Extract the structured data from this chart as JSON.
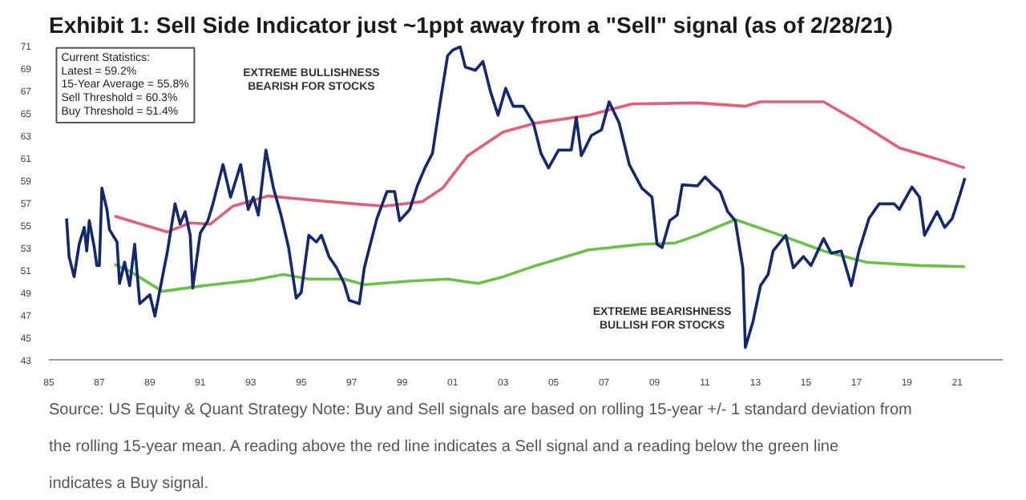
{
  "chart_data": {
    "type": "line",
    "title": "Exhibit 1: Sell Side Indicator just ~1ppt away from a \"Sell\" signal (as of 2/28/21)",
    "xlim": [
      1985,
      2022.8
    ],
    "ylim": [
      43,
      71
    ],
    "xticks": [
      {
        "value": 1985,
        "label": "85"
      },
      {
        "value": 1987,
        "label": "87"
      },
      {
        "value": 1989,
        "label": "89"
      },
      {
        "value": 1991,
        "label": "91"
      },
      {
        "value": 1993,
        "label": "93"
      },
      {
        "value": 1995,
        "label": "95"
      },
      {
        "value": 1997,
        "label": "97"
      },
      {
        "value": 1999,
        "label": "99"
      },
      {
        "value": 2001,
        "label": "01"
      },
      {
        "value": 2003,
        "label": "03"
      },
      {
        "value": 2005,
        "label": "05"
      },
      {
        "value": 2007,
        "label": "07"
      },
      {
        "value": 2009,
        "label": "09"
      },
      {
        "value": 2011,
        "label": "11"
      },
      {
        "value": 2013,
        "label": "13"
      },
      {
        "value": 2015,
        "label": "15"
      },
      {
        "value": 2017,
        "label": "17"
      },
      {
        "value": 2019,
        "label": "19"
      },
      {
        "value": 2021,
        "label": "21"
      }
    ],
    "yticks": [
      43,
      45,
      47,
      49,
      51,
      53,
      55,
      57,
      59,
      61,
      63,
      65,
      67,
      69,
      71
    ],
    "grid": false,
    "series": [
      {
        "color": "#e0607a",
        "x": [
          1987.6,
          1989.7,
          1990.6,
          1991.4,
          1992.3,
          1993.7,
          1995.1,
          1997.1,
          1998.3,
          1999.8,
          2000.6,
          2001.6,
          2003.0,
          2004.3,
          2006.4,
          2008.1,
          2010.7,
          2012.6,
          2013.2,
          2015.7,
          2017.0,
          2018.7,
          2020.2,
          2021.3
        ],
        "values": [
          55.8,
          54.4,
          55.2,
          55.1,
          56.7,
          57.6,
          57.3,
          56.9,
          56.7,
          57.1,
          58.3,
          61.2,
          63.3,
          64.1,
          64.8,
          65.8,
          65.9,
          65.6,
          66.0,
          66.0,
          64.3,
          61.9,
          60.9,
          60.1
        ]
      },
      {
        "color": "#6cc04a",
        "x": [
          1987.6,
          1988.2,
          1989.5,
          1991.1,
          1993.1,
          1994.3,
          1995.3,
          1996.7,
          1997.5,
          1999.2,
          2000.8,
          2002.0,
          2003.0,
          2004.3,
          2006.4,
          2008.5,
          2009.8,
          2010.7,
          2012.2,
          2014.0,
          2015.7,
          2017.4,
          2019.5,
          2021.3
        ],
        "values": [
          51.5,
          50.9,
          49.1,
          49.6,
          50.1,
          50.6,
          50.2,
          50.2,
          49.7,
          50.0,
          50.2,
          49.8,
          50.4,
          51.4,
          52.8,
          53.3,
          53.4,
          54.1,
          55.5,
          54.1,
          52.7,
          51.7,
          51.4,
          51.3
        ]
      },
      {
        "color": "#14286e",
        "x": [
          1985.7,
          1985.8,
          1986.0,
          1986.2,
          1986.4,
          1986.5,
          1986.6,
          1986.8,
          1986.9,
          1987.0,
          1987.1,
          1987.3,
          1987.4,
          1987.7,
          1987.8,
          1988.0,
          1988.2,
          1988.4,
          1988.6,
          1989.0,
          1989.2,
          1989.7,
          1990.0,
          1990.2,
          1990.4,
          1990.6,
          1990.7,
          1991.0,
          1991.3,
          1991.5,
          1991.9,
          1992.2,
          1992.6,
          1992.9,
          1993.1,
          1993.3,
          1993.6,
          1993.9,
          1994.2,
          1994.5,
          1994.8,
          1995.0,
          1995.3,
          1995.6,
          1995.8,
          1996.1,
          1996.4,
          1996.7,
          1996.9,
          1997.3,
          1997.5,
          1998.0,
          1998.4,
          1998.7,
          1998.9,
          1999.3,
          1999.6,
          1999.9,
          2000.2,
          2000.5,
          2000.8,
          2001.0,
          2001.3,
          2001.5,
          2001.9,
          2002.2,
          2002.5,
          2002.8,
          2003.1,
          2003.4,
          2003.8,
          2004.2,
          2004.5,
          2004.8,
          2005.2,
          2005.7,
          2005.9,
          2006.1,
          2006.5,
          2006.9,
          2007.2,
          2007.6,
          2008.0,
          2008.5,
          2008.9,
          2009.1,
          2009.3,
          2009.6,
          2009.9,
          2010.1,
          2010.7,
          2011.0,
          2011.3,
          2011.6,
          2011.9,
          2012.2,
          2012.5,
          2012.6,
          2012.9,
          2013.2,
          2013.5,
          2013.7,
          2014.2,
          2014.5,
          2014.9,
          2015.2,
          2015.7,
          2016.0,
          2016.4,
          2016.8,
          2017.1,
          2017.5,
          2017.9,
          2018.5,
          2018.7,
          2019.2,
          2019.5,
          2019.7,
          2020.2,
          2020.5,
          2020.8,
          2021.1,
          2021.3
        ],
        "values": [
          55.6,
          52.2,
          50.4,
          53.3,
          54.8,
          52.7,
          55.4,
          53.0,
          51.4,
          51.4,
          58.3,
          56.4,
          54.6,
          53.5,
          49.8,
          51.7,
          49.6,
          53.3,
          48.0,
          48.8,
          46.9,
          52.7,
          56.9,
          55.1,
          56.2,
          54.1,
          49.4,
          54.3,
          55.4,
          56.9,
          60.4,
          57.5,
          60.4,
          56.4,
          57.5,
          55.9,
          61.7,
          58.3,
          55.9,
          53.0,
          48.5,
          49.0,
          54.1,
          53.5,
          54.1,
          52.2,
          51.2,
          49.8,
          48.3,
          48.0,
          51.2,
          55.6,
          58.0,
          58.0,
          55.4,
          56.4,
          58.5,
          60.1,
          61.4,
          65.9,
          70.1,
          70.6,
          70.9,
          69.1,
          68.8,
          69.6,
          66.9,
          64.8,
          67.2,
          65.6,
          65.6,
          64.1,
          61.4,
          60.1,
          61.7,
          61.7,
          64.6,
          61.2,
          63.0,
          63.5,
          66.0,
          64.1,
          60.4,
          58.3,
          57.5,
          53.3,
          53.0,
          55.4,
          55.9,
          58.6,
          58.5,
          59.3,
          58.6,
          58.0,
          56.2,
          55.4,
          51.2,
          44.1,
          46.4,
          49.6,
          50.6,
          52.7,
          54.1,
          51.2,
          52.2,
          51.4,
          53.8,
          52.5,
          52.7,
          49.6,
          52.7,
          55.6,
          56.9,
          56.9,
          56.4,
          58.4,
          57.5,
          54.1,
          56.2,
          54.8,
          55.6,
          57.7,
          59.2
        ]
      }
    ],
    "annotations": [
      "Current Statistics:\nLatest = 59.2%\n15-Year Average = 55.8%\nSell Threshold = 60.3%\nBuy Threshold = 51.4%",
      "EXTREME BULLISHNESS\nBEARISH FOR STOCKS",
      "EXTREME BEARISHNESS\nBULLISH FOR STOCKS",
      "Source: US Equity & Quant Strategy Note: Buy and Sell signals are based on rolling 15-year +/- 1 standard deviation from the rolling 15-year mean. A reading above the red line indicates a Sell signal and a reading below the green line indicates a Buy signal."
    ]
  }
}
